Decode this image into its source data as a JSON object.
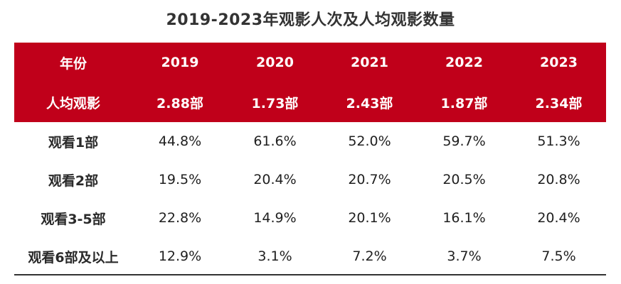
{
  "chart_data": {
    "type": "table",
    "title": "2019-2023年观影人次及人均观影数量",
    "header_color": "#c0001a",
    "columns": [
      "年份",
      "2019",
      "2020",
      "2021",
      "2022",
      "2023"
    ],
    "per_capita_row": {
      "label": "人均观影",
      "values": [
        "2.88部",
        "1.73部",
        "2.43部",
        "1.87部",
        "2.34部"
      ]
    },
    "rows": [
      {
        "label": "观看1部",
        "values": [
          "44.8%",
          "61.6%",
          "52.0%",
          "59.7%",
          "51.3%"
        ]
      },
      {
        "label": "观看2部",
        "values": [
          "19.5%",
          "20.4%",
          "20.7%",
          "20.5%",
          "20.8%"
        ]
      },
      {
        "label": "观看3-5部",
        "values": [
          "22.8%",
          "14.9%",
          "20.1%",
          "16.1%",
          "20.4%"
        ]
      },
      {
        "label": "观看6部及以上",
        "values": [
          "12.9%",
          "3.1%",
          "7.2%",
          "3.7%",
          "7.5%"
        ]
      }
    ]
  }
}
